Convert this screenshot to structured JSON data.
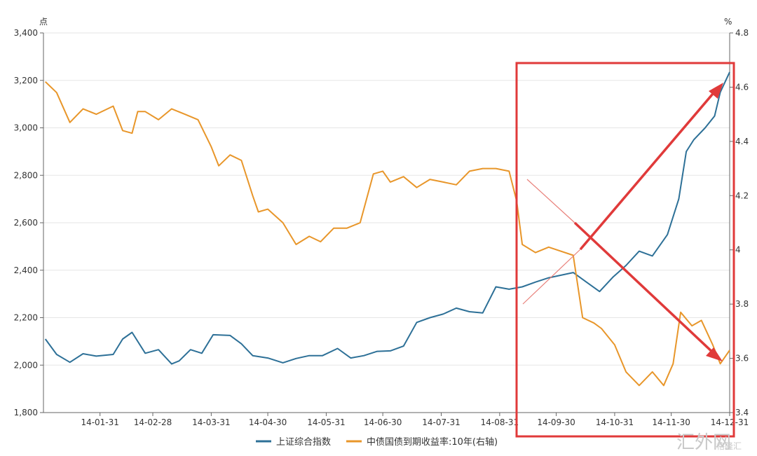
{
  "chart_data": {
    "type": "line",
    "left_unit": "点",
    "right_unit": "%",
    "ylim_left": [
      1800,
      3400
    ],
    "ylim_right": [
      3.4,
      4.8
    ],
    "yticks_left": [
      "3,400",
      "3,200",
      "3,000",
      "2,800",
      "2,600",
      "2,400",
      "2,200",
      "2,000",
      "1,800"
    ],
    "yticks_right": [
      "4.8",
      "4.6",
      "4.4",
      "4.2",
      "4",
      "3.8",
      "3.6",
      "3.4"
    ],
    "x_tick_labels": [
      "14-01-31",
      "14-02-28",
      "14-03-31",
      "14-04-30",
      "14-05-31",
      "14-06-30",
      "14-07-31",
      "14-08-31",
      "14-09-30",
      "14-10-31",
      "14-11-30",
      "14-12-31"
    ],
    "grid": true,
    "legend_position": "bottom",
    "series": [
      {
        "name": "上证综合指数",
        "axis": "left",
        "color": "#2d7097",
        "x": [
          "2014-01-02",
          "2014-01-08",
          "2014-01-15",
          "2014-01-22",
          "2014-01-29",
          "2014-02-07",
          "2014-02-12",
          "2014-02-17",
          "2014-02-24",
          "2014-03-03",
          "2014-03-10",
          "2014-03-14",
          "2014-03-20",
          "2014-03-26",
          "2014-04-01",
          "2014-04-10",
          "2014-04-16",
          "2014-04-22",
          "2014-04-30",
          "2014-05-08",
          "2014-05-15",
          "2014-05-22",
          "2014-05-29",
          "2014-06-06",
          "2014-06-13",
          "2014-06-20",
          "2014-06-27",
          "2014-07-04",
          "2014-07-11",
          "2014-07-18",
          "2014-07-25",
          "2014-08-01",
          "2014-08-08",
          "2014-08-15",
          "2014-08-22",
          "2014-08-29",
          "2014-09-05",
          "2014-09-12",
          "2014-09-19",
          "2014-09-26",
          "2014-10-09",
          "2014-10-16",
          "2014-10-23",
          "2014-10-30",
          "2014-11-06",
          "2014-11-13",
          "2014-11-20",
          "2014-11-28",
          "2014-12-04",
          "2014-12-08",
          "2014-12-12",
          "2014-12-18",
          "2014-12-23",
          "2014-12-26",
          "2014-12-31"
        ],
        "values": [
          2110,
          2045,
          2012,
          2048,
          2038,
          2045,
          2110,
          2138,
          2050,
          2065,
          2005,
          2018,
          2065,
          2050,
          2128,
          2125,
          2090,
          2040,
          2030,
          2010,
          2028,
          2040,
          2040,
          2070,
          2030,
          2040,
          2058,
          2060,
          2080,
          2180,
          2200,
          2215,
          2240,
          2225,
          2220,
          2330,
          2320,
          2330,
          2350,
          2368,
          2390,
          2350,
          2310,
          2370,
          2420,
          2480,
          2460,
          2550,
          2700,
          2900,
          2950,
          3000,
          3050,
          3150,
          3235
        ]
      },
      {
        "name": "中债国债到期收益率:10年(右轴)",
        "axis": "right",
        "color": "#e8962a",
        "x": [
          "2014-01-02",
          "2014-01-08",
          "2014-01-15",
          "2014-01-22",
          "2014-01-29",
          "2014-02-07",
          "2014-02-12",
          "2014-02-17",
          "2014-02-20",
          "2014-02-24",
          "2014-03-03",
          "2014-03-10",
          "2014-03-17",
          "2014-03-24",
          "2014-03-31",
          "2014-04-04",
          "2014-04-10",
          "2014-04-16",
          "2014-04-22",
          "2014-04-25",
          "2014-04-30",
          "2014-05-08",
          "2014-05-15",
          "2014-05-22",
          "2014-05-28",
          "2014-06-04",
          "2014-06-11",
          "2014-06-18",
          "2014-06-25",
          "2014-06-30",
          "2014-07-04",
          "2014-07-11",
          "2014-07-18",
          "2014-07-25",
          "2014-08-01",
          "2014-08-08",
          "2014-08-15",
          "2014-08-22",
          "2014-08-29",
          "2014-09-05",
          "2014-09-09",
          "2014-09-12",
          "2014-09-19",
          "2014-09-26",
          "2014-10-09",
          "2014-10-14",
          "2014-10-20",
          "2014-10-24",
          "2014-10-31",
          "2014-11-06",
          "2014-11-13",
          "2014-11-20",
          "2014-11-26",
          "2014-12-01",
          "2014-12-05",
          "2014-12-11",
          "2014-12-16",
          "2014-12-22",
          "2014-12-26",
          "2014-12-31"
        ],
        "values": [
          4.62,
          4.58,
          4.47,
          4.52,
          4.5,
          4.53,
          4.44,
          4.43,
          4.51,
          4.51,
          4.48,
          4.52,
          4.5,
          4.48,
          4.38,
          4.31,
          4.35,
          4.33,
          4.2,
          4.14,
          4.15,
          4.1,
          4.02,
          4.05,
          4.03,
          4.08,
          4.08,
          4.1,
          4.28,
          4.29,
          4.25,
          4.27,
          4.23,
          4.26,
          4.25,
          4.24,
          4.29,
          4.3,
          4.3,
          4.29,
          4.18,
          4.02,
          3.99,
          4.01,
          3.98,
          3.75,
          3.73,
          3.71,
          3.65,
          3.55,
          3.5,
          3.55,
          3.5,
          3.58,
          3.77,
          3.72,
          3.74,
          3.65,
          3.58,
          3.63
        ]
      }
    ]
  },
  "watermark": {
    "main": "汇外网",
    "sub": "格隆汇"
  }
}
